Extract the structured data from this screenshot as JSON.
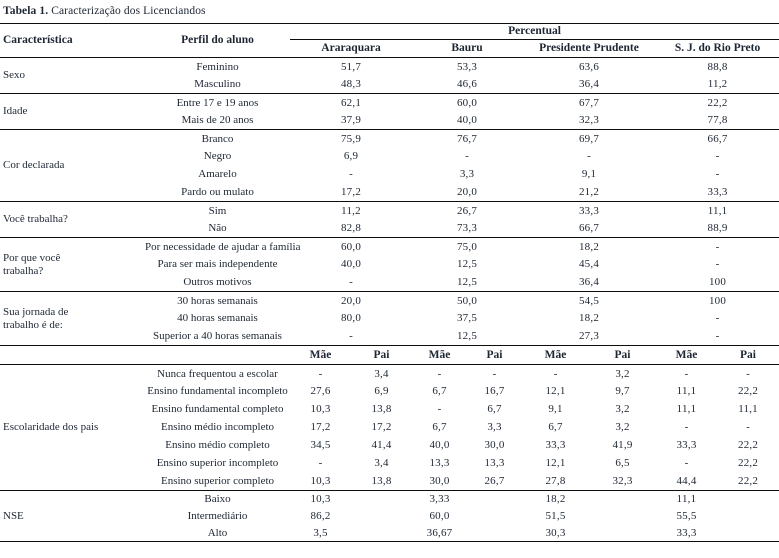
{
  "title": {
    "label_bold": "Tabela 1.",
    "label_rest": " Caracterização dos Licenciandos"
  },
  "table": {
    "header": {
      "caracteristica": "Característica",
      "perfil": "Perfil do aluno",
      "percentual": "Percentual",
      "cities": [
        "Araraquara",
        "Bauru",
        "Presidente Prudente",
        "S. J. do Rio Preto"
      ],
      "parent_cols": [
        "Mãe",
        "Pai"
      ]
    },
    "sections": [
      {
        "name": "Sexo",
        "mode": "city",
        "rows": [
          {
            "label": "Feminino",
            "values": [
              "51,7",
              "53,3",
              "63,6",
              "88,8"
            ]
          },
          {
            "label": "Masculino",
            "values": [
              "48,3",
              "46,6",
              "36,4",
              "11,2"
            ]
          }
        ]
      },
      {
        "name": "Idade",
        "mode": "city",
        "rows": [
          {
            "label": "Entre 17 e 19 anos",
            "values": [
              "62,1",
              "60,0",
              "67,7",
              "22,2"
            ]
          },
          {
            "label": "Mais de 20 anos",
            "values": [
              "37,9",
              "40,0",
              "32,3",
              "77,8"
            ]
          }
        ]
      },
      {
        "name": "Cor declarada",
        "mode": "city",
        "rows": [
          {
            "label": "Branco",
            "values": [
              "75,9",
              "76,7",
              "69,7",
              "66,7"
            ]
          },
          {
            "label": "Negro",
            "values": [
              "6,9",
              "-",
              "-",
              "-"
            ]
          },
          {
            "label": "Amarelo",
            "values": [
              "-",
              "3,3",
              "9,1",
              "-"
            ]
          },
          {
            "label": "Pardo ou mulato",
            "values": [
              "17,2",
              "20,0",
              "21,2",
              "33,3"
            ]
          }
        ]
      },
      {
        "name": "Você trabalha?",
        "mode": "city",
        "rows": [
          {
            "label": "Sim",
            "values": [
              "11,2",
              "26,7",
              "33,3",
              "11,1"
            ]
          },
          {
            "label": "Não",
            "values": [
              "82,8",
              "73,3",
              "66,7",
              "88,9"
            ]
          }
        ]
      },
      {
        "name": "Por que você\ntrabalha?",
        "mode": "city",
        "rows": [
          {
            "label": "Por necessidade de ajudar a família",
            "values": [
              "60,0",
              "75,0",
              "18,2",
              "-"
            ]
          },
          {
            "label": "Para ser mais independente",
            "values": [
              "40,0",
              "12,5",
              "45,4",
              "-"
            ]
          },
          {
            "label": "Outros motivos",
            "values": [
              "-",
              "12,5",
              "36,4",
              "100"
            ]
          }
        ]
      },
      {
        "name": "Sua jornada de\ntrabalho é de:",
        "mode": "city",
        "rows": [
          {
            "label": "30 horas semanais",
            "values": [
              "20,0",
              "50,0",
              "54,5",
              "100"
            ]
          },
          {
            "label": "40 horas semanais",
            "values": [
              "80,0",
              "37,5",
              "18,2",
              "-"
            ]
          },
          {
            "label": "Superior a 40 horas semanais",
            "values": [
              "-",
              "12,5",
              "27,3",
              "-"
            ]
          }
        ]
      },
      {
        "name": "Escolaridade dos pais",
        "mode": "parent",
        "parent_header_before": true,
        "rows": [
          {
            "label": "Nunca frequentou a escolar",
            "values": [
              "-",
              "3,4",
              "-",
              "-",
              "-",
              "3,2",
              "-",
              "-"
            ]
          },
          {
            "label": "Ensino fundamental incompleto",
            "values": [
              "27,6",
              "6,9",
              "6,7",
              "16,7",
              "12,1",
              "9,7",
              "11,1",
              "22,2"
            ]
          },
          {
            "label": "Ensino fundamental completo",
            "values": [
              "10,3",
              "13,8",
              "-",
              "6,7",
              "9,1",
              "3,2",
              "11,1",
              "11,1"
            ]
          },
          {
            "label": "Ensino médio incompleto",
            "values": [
              "17,2",
              "17,2",
              "6,7",
              "3,3",
              "6,7",
              "3,2",
              "-",
              "-"
            ]
          },
          {
            "label": "Ensino médio completo",
            "values": [
              "34,5",
              "41,4",
              "40,0",
              "30,0",
              "33,3",
              "41,9",
              "33,3",
              "22,2"
            ]
          },
          {
            "label": "Ensino superior incompleto",
            "values": [
              "-",
              "3,4",
              "13,3",
              "13,3",
              "12,1",
              "6,5",
              "-",
              "22,2"
            ]
          },
          {
            "label": "Ensino superior completo",
            "values": [
              "10,3",
              "13,8",
              "30,0",
              "26,7",
              "27,8",
              "32,3",
              "44,4",
              "22,2"
            ]
          }
        ]
      },
      {
        "name": "NSE",
        "mode": "mae-only",
        "css": "nse-row",
        "rows": [
          {
            "label": "Baixo",
            "values": [
              "10,3",
              "3,33",
              "18,2",
              "11,1"
            ]
          },
          {
            "label": "Intermediário",
            "values": [
              "86,2",
              "60,0",
              "51,5",
              "55,5"
            ]
          },
          {
            "label": "Alto",
            "values": [
              "3,5",
              "36,67",
              "30,3",
              "33,3"
            ]
          }
        ]
      }
    ]
  },
  "colors": {
    "text": "#1d2633",
    "rule": "#0d0d0d",
    "background": "#ffffff"
  }
}
